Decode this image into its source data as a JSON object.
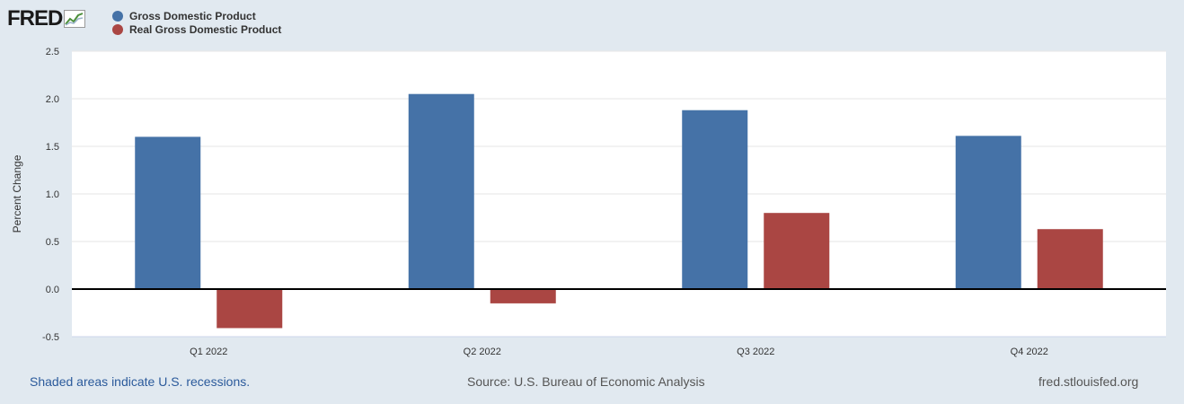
{
  "logo": {
    "text": "FRED"
  },
  "chart_data": {
    "type": "bar",
    "title": "",
    "categories": [
      "Q1 2022",
      "Q2 2022",
      "Q3 2022",
      "Q4 2022"
    ],
    "series": [
      {
        "name": "Gross Domestic Product",
        "color": "#4572a7",
        "values": [
          1.6,
          2.05,
          1.88,
          1.61
        ]
      },
      {
        "name": "Real Gross Domestic Product",
        "color": "#aa4643",
        "values": [
          -0.41,
          -0.15,
          0.8,
          0.63
        ]
      }
    ],
    "xlabel": "",
    "ylabel": "Percent Change",
    "ylim": [
      -0.5,
      2.5
    ],
    "yticks": [
      "2.5",
      "2.0",
      "1.5",
      "1.0",
      "0.5",
      "0.0",
      "-0.5"
    ],
    "legend_position": "top-left",
    "grid": true
  },
  "footer": {
    "recession_note": "Shaded areas indicate U.S. recessions.",
    "source": "Source: U.S. Bureau of Economic Analysis",
    "site": "fred.stlouisfed.org"
  }
}
